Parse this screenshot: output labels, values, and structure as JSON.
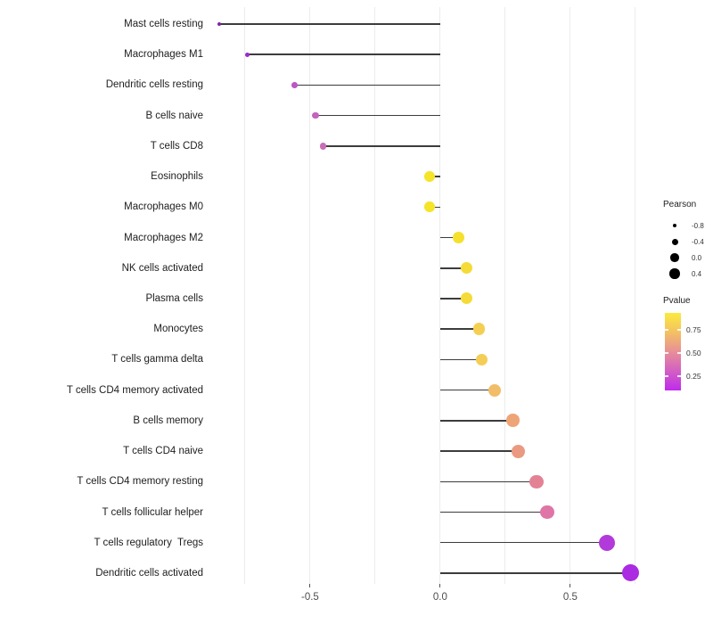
{
  "chart_data": {
    "type": "lollipop",
    "orientation": "horizontal",
    "title": "",
    "xlabel": "",
    "ylabel": "",
    "xlim": [
      -0.88,
      0.795
    ],
    "baseline_value": 0,
    "grid": "vertical-light",
    "grid_x_values": [
      -0.75,
      -0.5,
      -0.25,
      0,
      0.25,
      0.5,
      0.75
    ],
    "x_ticks": [
      {
        "value": -0.5,
        "label": "-0.5"
      },
      {
        "value": 0.0,
        "label": "0.0"
      },
      {
        "value": 0.5,
        "label": "0.5"
      }
    ],
    "rows": [
      {
        "label": "Mast cells resting",
        "pearson": -0.85,
        "color": "#7D26A6"
      },
      {
        "label": "Macrophages M1",
        "pearson": -0.74,
        "color": "#9B2BC9"
      },
      {
        "label": "Dendritic cells resting",
        "pearson": -0.56,
        "color": "#BE55C5"
      },
      {
        "label": "B cells naive",
        "pearson": -0.48,
        "color": "#C562BE"
      },
      {
        "label": "T cells CD8",
        "pearson": -0.45,
        "color": "#C96DB7"
      },
      {
        "label": "Eosinophils",
        "pearson": -0.04,
        "color": "#F5E428"
      },
      {
        "label": "Macrophages M0",
        "pearson": -0.04,
        "color": "#F5E428"
      },
      {
        "label": "Macrophages M2",
        "pearson": 0.07,
        "color": "#F6E02E"
      },
      {
        "label": "NK cells activated",
        "pearson": 0.1,
        "color": "#F5DB38"
      },
      {
        "label": "Plasma cells",
        "pearson": 0.1,
        "color": "#F5DB38"
      },
      {
        "label": "Monocytes",
        "pearson": 0.15,
        "color": "#F4CF52"
      },
      {
        "label": "T cells gamma delta",
        "pearson": 0.16,
        "color": "#F4CD56"
      },
      {
        "label": "T cells CD4 memory activated",
        "pearson": 0.21,
        "color": "#F1BD68"
      },
      {
        "label": "B cells memory",
        "pearson": 0.28,
        "color": "#EDA477"
      },
      {
        "label": "T cells CD4 naive",
        "pearson": 0.3,
        "color": "#EA9A81"
      },
      {
        "label": "T cells CD4 memory resting",
        "pearson": 0.37,
        "color": "#E38295"
      },
      {
        "label": "T cells follicular helper",
        "pearson": 0.41,
        "color": "#DF74A6"
      },
      {
        "label": "T cells regulatory  Tregs",
        "pearson": 0.64,
        "color": "#B23ADB"
      },
      {
        "label": "Dendritic cells activated",
        "pearson": 0.73,
        "color": "#AA2BE2"
      }
    ],
    "legend_size": {
      "title": "Pearson",
      "entries": [
        {
          "label": "-0.8",
          "diameter": 4
        },
        {
          "label": "-0.4",
          "diameter": 7
        },
        {
          "label": "0.0",
          "diameter": 9.5
        },
        {
          "label": "0.4",
          "diameter": 11.5
        }
      ]
    },
    "legend_color": {
      "title": "Pvalue",
      "gradient_stops_bottom_to_top": [
        "#C02BEB",
        "#D25FC4",
        "#E88F97",
        "#F3C163",
        "#FBEA3E"
      ],
      "ticks": [
        {
          "label": "0.75",
          "frac_from_top": 0.22
        },
        {
          "label": "0.50",
          "frac_from_top": 0.52
        },
        {
          "label": "0.25",
          "frac_from_top": 0.82
        }
      ]
    },
    "legend_position": "right"
  },
  "styles": {
    "background": "#ffffff",
    "grid_color": "#ececec",
    "stem_color": "#3c3c3c",
    "axis_text_color": "#4d4d4d",
    "label_color": "#1e1e1e",
    "accent_yellow": "#F5E428",
    "accent_purple": "#AA2BE2"
  }
}
